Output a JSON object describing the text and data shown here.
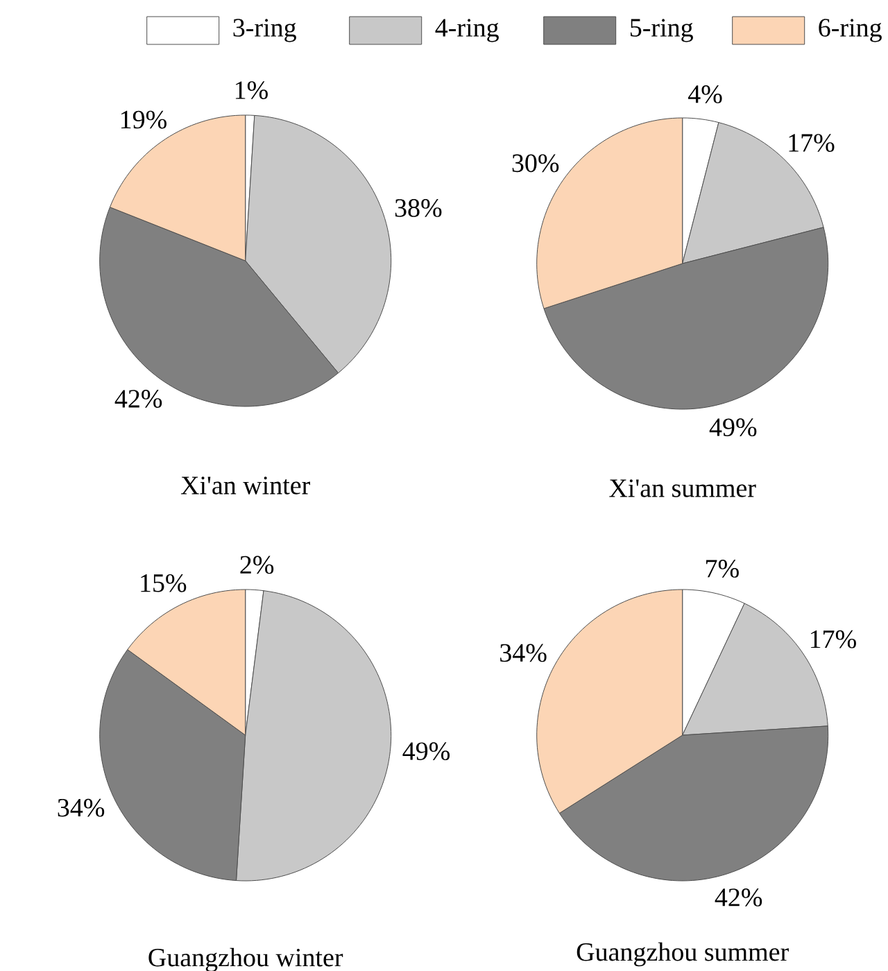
{
  "chart_data": [
    {
      "type": "pie",
      "title": "Xi'an winter",
      "categories": [
        "3-ring",
        "4-ring",
        "5-ring",
        "6-ring"
      ],
      "values": [
        1,
        38,
        42,
        19
      ],
      "value_labels": [
        "1%",
        "38%",
        "42%",
        "19%"
      ],
      "colors": [
        "#ffffff",
        "#c8c8c8",
        "#808080",
        "#fcd5b5"
      ],
      "legend": "top"
    },
    {
      "type": "pie",
      "title": "Xi'an summer",
      "categories": [
        null,
        null,
        null,
        null
      ],
      "values": [
        4,
        17,
        49,
        30
      ],
      "value_labels": [
        "4%",
        "17%",
        "49%",
        "30%"
      ],
      "colors": [
        "#ffffff",
        "#c8c8c8",
        "#808080",
        "#fcd5b5"
      ]
    },
    {
      "type": "pie",
      "title": "Guangzhou winter",
      "categories": [
        null,
        null,
        null,
        null
      ],
      "values": [
        2,
        49,
        34,
        15
      ],
      "value_labels": [
        "2%",
        "49%",
        "34%",
        "15%"
      ],
      "colors": [
        "#ffffff",
        "#c8c8c8",
        "#808080",
        "#fcd5b5"
      ]
    },
    {
      "type": "pie",
      "title": "Guangzhou summer",
      "categories": [
        null,
        null,
        null,
        null
      ],
      "values": [
        7,
        17,
        42,
        34
      ],
      "value_labels": [
        "7%",
        "17%",
        "42%",
        "34%"
      ],
      "colors": [
        "#ffffff",
        "#c8c8c8",
        "#808080",
        "#fcd5b5"
      ]
    }
  ]
}
